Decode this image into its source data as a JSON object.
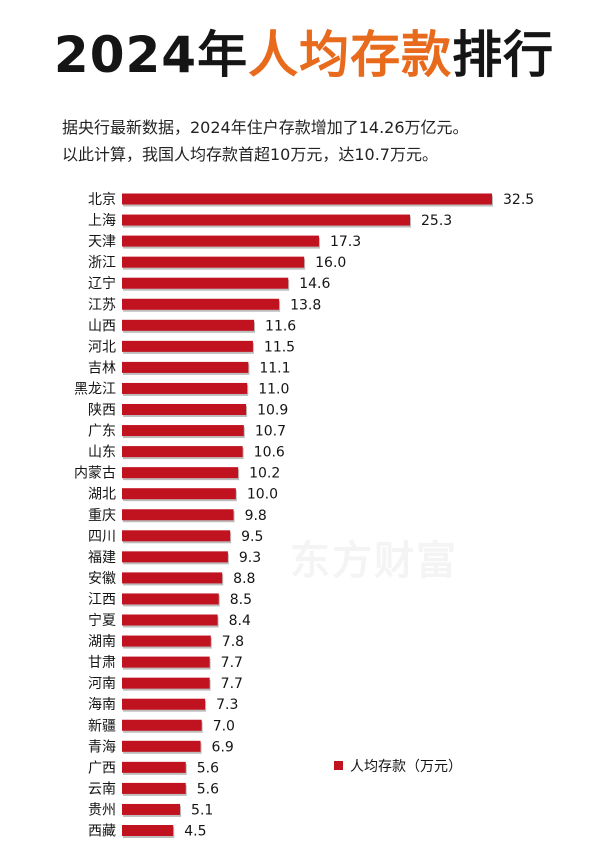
{
  "title": {
    "prefix": "2024年",
    "highlight": "人均存款",
    "suffix": "排行"
  },
  "subtitle": [
    "据央行最新数据，2024年住户存款增加了14.26万亿元。",
    "以此计算，我国人均存款首超10万元，达10.7万元。"
  ],
  "watermark": "东方财富",
  "colors": {
    "bar": "#c1121f",
    "accent": "#e86a1c",
    "text": "#151515"
  },
  "chart_data": {
    "type": "bar",
    "orientation": "horizontal",
    "categories": [
      "北京",
      "上海",
      "天津",
      "浙江",
      "辽宁",
      "江苏",
      "山西",
      "河北",
      "吉林",
      "黑龙江",
      "陕西",
      "广东",
      "山东",
      "内蒙古",
      "湖北",
      "重庆",
      "四川",
      "福建",
      "安徽",
      "江西",
      "宁夏",
      "湖南",
      "甘肃",
      "河南",
      "海南",
      "新疆",
      "青海",
      "广西",
      "云南",
      "贵州",
      "西藏"
    ],
    "series": [
      {
        "name": "人均存款（万元）",
        "values": [
          32.5,
          25.3,
          17.3,
          16.0,
          14.6,
          13.8,
          11.6,
          11.5,
          11.1,
          11.0,
          10.9,
          10.7,
          10.6,
          10.2,
          10.0,
          9.8,
          9.5,
          9.3,
          8.8,
          8.5,
          8.4,
          7.8,
          7.7,
          7.7,
          7.3,
          7.0,
          6.9,
          5.6,
          5.6,
          5.1,
          4.5
        ]
      }
    ],
    "value_labels": [
      "32.5",
      "25.3",
      "17.3",
      "16.0",
      "14.6",
      "13.8",
      "11.6",
      "11.5",
      "11.1",
      "11.0",
      "10.9",
      "10.7",
      "10.6",
      "10.2",
      "10.0",
      "9.8",
      "9.5",
      "9.3",
      "8.8",
      "8.5",
      "8.4",
      "7.8",
      "7.7",
      "7.7",
      "7.3",
      "7.0",
      "6.9",
      "5.6",
      "5.6",
      "5.1",
      "4.5"
    ],
    "legend": {
      "label": "人均存款（万元）",
      "position": "bottom-right"
    },
    "grid": false
  }
}
